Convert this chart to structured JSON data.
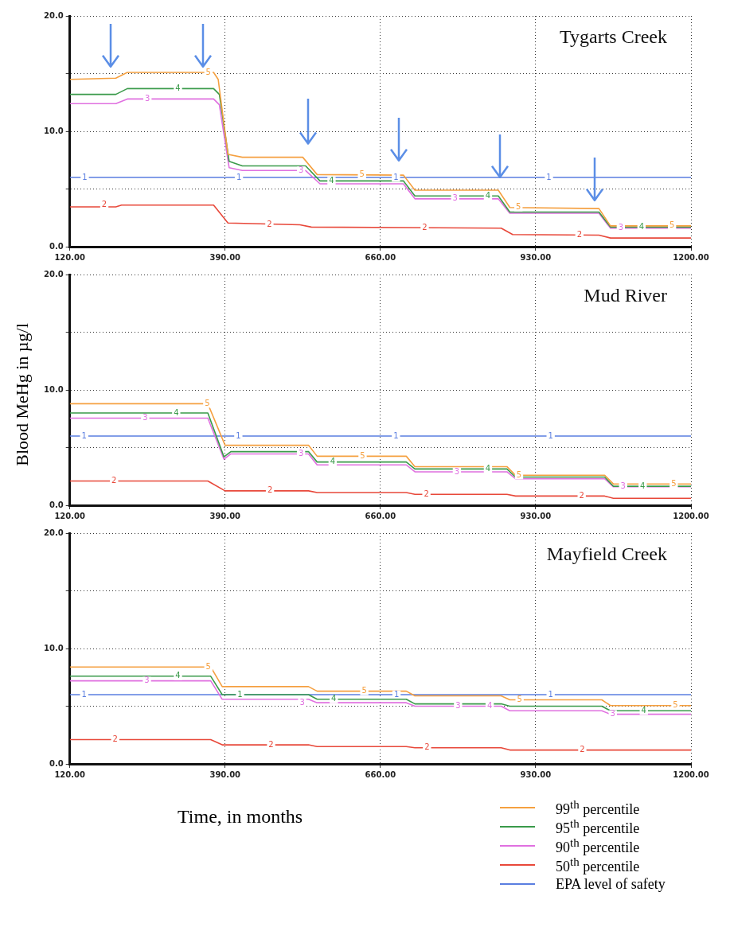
{
  "chart_data": [
    {
      "type": "line",
      "title": "Tygarts Creek",
      "xlim": [
        120,
        1200
      ],
      "ylim": [
        0,
        20
      ],
      "grid": true,
      "marker": "none",
      "xticks": [
        {
          "value": 120,
          "label": "120.00"
        },
        {
          "value": 390,
          "label": "390.00"
        },
        {
          "value": 660,
          "label": "660.00"
        },
        {
          "value": 930,
          "label": "930.00"
        },
        {
          "value": 1200,
          "label": "1200.00"
        }
      ],
      "yticks": [
        {
          "value": 0,
          "label": "0.0"
        },
        {
          "value": 5,
          "label": null
        },
        {
          "value": 10,
          "label": "10.0"
        },
        {
          "value": 15,
          "label": null
        },
        {
          "value": 20,
          "label": "20.0"
        }
      ],
      "series": [
        {
          "color": "#f5a040",
          "x": [
            120,
            200,
            220,
            370,
            378,
            395,
            420,
            525,
            550,
            700,
            720,
            865,
            885,
            1040,
            1060,
            1200
          ],
          "values": [
            14.5,
            14.6,
            15.1,
            15.1,
            14.5,
            8.0,
            7.75,
            7.75,
            6.25,
            6.2,
            4.9,
            4.9,
            3.4,
            3.3,
            1.8,
            1.8
          ]
        },
        {
          "color": "#3a9a4a",
          "x": [
            120,
            200,
            220,
            370,
            380,
            397,
            420,
            530,
            555,
            700,
            720,
            865,
            885,
            1040,
            1060,
            1200
          ],
          "values": [
            13.2,
            13.2,
            13.7,
            13.7,
            13.2,
            7.4,
            7.0,
            7.0,
            5.7,
            5.7,
            4.4,
            4.4,
            3.0,
            3.0,
            1.7,
            1.7
          ]
        },
        {
          "color": "#e070e0",
          "x": [
            120,
            200,
            220,
            370,
            380,
            397,
            420,
            530,
            555,
            700,
            720,
            865,
            885,
            1040,
            1060,
            1200
          ],
          "values": [
            12.4,
            12.4,
            12.8,
            12.8,
            12.3,
            6.85,
            6.6,
            6.6,
            5.45,
            5.45,
            4.15,
            4.15,
            2.9,
            2.9,
            1.6,
            1.6
          ]
        },
        {
          "color": "#e8483a",
          "x": [
            120,
            200,
            210,
            370,
            395,
            520,
            540,
            870,
            890,
            1040,
            1060,
            1200
          ],
          "values": [
            3.45,
            3.45,
            3.6,
            3.6,
            2.05,
            1.9,
            1.7,
            1.6,
            1.05,
            1.0,
            0.75,
            0.75
          ]
        },
        {
          "color": "#5a7ee0",
          "x": [
            120,
            1200
          ],
          "values": [
            6,
            6
          ]
        }
      ],
      "annotations": [
        {
          "text": "1",
          "x": 146,
          "y": 6
        },
        {
          "text": "1",
          "x": 414,
          "y": 6
        },
        {
          "text": "1",
          "x": 687,
          "y": 6
        },
        {
          "text": "1",
          "x": 953,
          "y": 6
        },
        {
          "text": "2",
          "x": 180,
          "y": 3.6
        },
        {
          "text": "2",
          "x": 467,
          "y": 1.9
        },
        {
          "text": "2",
          "x": 737,
          "y": 1.6
        },
        {
          "text": "2",
          "x": 1006,
          "y": 1.0
        },
        {
          "text": "3",
          "x": 255,
          "y": 12.8
        },
        {
          "text": "3",
          "x": 522,
          "y": 6.6
        },
        {
          "text": "3",
          "x": 790,
          "y": 4.15
        },
        {
          "text": "3",
          "x": 1078,
          "y": 1.6
        },
        {
          "text": "4",
          "x": 308,
          "y": 13.7
        },
        {
          "text": "4",
          "x": 575,
          "y": 5.7
        },
        {
          "text": "4",
          "x": 847,
          "y": 4.4
        },
        {
          "text": "4",
          "x": 1114,
          "y": 1.7
        },
        {
          "text": "5",
          "x": 361,
          "y": 15.1
        },
        {
          "text": "5",
          "x": 628,
          "y": 6.25
        },
        {
          "text": "5",
          "x": 900,
          "y": 3.4
        },
        {
          "text": "5",
          "x": 1167,
          "y": 1.8
        }
      ]
    },
    {
      "type": "line",
      "title": "Mud River",
      "ylabel": "Blood MeHg in µg/l",
      "xlim": [
        120,
        1200
      ],
      "ylim": [
        0,
        20
      ],
      "grid": true,
      "marker": "none",
      "xticks": [
        {
          "value": 120,
          "label": "120.00"
        },
        {
          "value": 390,
          "label": "390.00"
        },
        {
          "value": 660,
          "label": "660.00"
        },
        {
          "value": 930,
          "label": "930.00"
        },
        {
          "value": 1200,
          "label": "1200.00"
        }
      ],
      "yticks": [
        {
          "value": 0,
          "label": "0.0"
        },
        {
          "value": 5,
          "label": null
        },
        {
          "value": 10,
          "label": "10.0"
        },
        {
          "value": 15,
          "label": null
        },
        {
          "value": 20,
          "label": "20.0"
        }
      ],
      "series": [
        {
          "color": "#f5a040",
          "x": [
            120,
            360,
            390,
            535,
            550,
            705,
            720,
            880,
            895,
            1050,
            1065,
            1200
          ],
          "values": [
            8.8,
            8.8,
            5.2,
            5.2,
            4.25,
            4.25,
            3.35,
            3.35,
            2.6,
            2.6,
            1.85,
            1.85
          ]
        },
        {
          "color": "#3a9a4a",
          "x": [
            120,
            360,
            388,
            400,
            535,
            550,
            705,
            720,
            880,
            895,
            1050,
            1065,
            1200
          ],
          "values": [
            8.0,
            8.0,
            4.2,
            4.65,
            4.65,
            3.75,
            3.75,
            3.15,
            3.15,
            2.45,
            2.45,
            1.65,
            1.65
          ]
        },
        {
          "color": "#e070e0",
          "x": [
            120,
            360,
            388,
            400,
            535,
            550,
            705,
            720,
            880,
            895,
            1050,
            1065,
            1200
          ],
          "values": [
            7.55,
            7.55,
            4.0,
            4.45,
            4.45,
            3.5,
            3.5,
            2.9,
            2.9,
            2.3,
            2.3,
            1.6,
            1.6
          ]
        },
        {
          "color": "#e8483a",
          "x": [
            120,
            360,
            390,
            535,
            550,
            705,
            720,
            880,
            895,
            1050,
            1065,
            1200
          ],
          "values": [
            2.1,
            2.1,
            1.25,
            1.25,
            1.1,
            1.1,
            0.95,
            0.95,
            0.8,
            0.8,
            0.6,
            0.6
          ]
        },
        {
          "color": "#5a7ee0",
          "x": [
            120,
            1200
          ],
          "values": [
            6,
            6
          ]
        }
      ],
      "annotations": [
        {
          "text": "1",
          "x": 145,
          "y": 6
        },
        {
          "text": "1",
          "x": 413,
          "y": 6
        },
        {
          "text": "1",
          "x": 687,
          "y": 6
        },
        {
          "text": "1",
          "x": 956,
          "y": 6
        },
        {
          "text": "2",
          "x": 197,
          "y": 2.1
        },
        {
          "text": "2",
          "x": 468,
          "y": 1.25
        },
        {
          "text": "2",
          "x": 740,
          "y": 0.95
        },
        {
          "text": "2",
          "x": 1010,
          "y": 0.8
        },
        {
          "text": "3",
          "x": 251,
          "y": 7.55
        },
        {
          "text": "3",
          "x": 522,
          "y": 4.45
        },
        {
          "text": "3",
          "x": 793,
          "y": 2.9
        },
        {
          "text": "3",
          "x": 1082,
          "y": 1.6
        },
        {
          "text": "4",
          "x": 305,
          "y": 8.0
        },
        {
          "text": "4",
          "x": 577,
          "y": 3.75
        },
        {
          "text": "4",
          "x": 847,
          "y": 3.15
        },
        {
          "text": "4",
          "x": 1116,
          "y": 1.65
        },
        {
          "text": "5",
          "x": 359,
          "y": 8.8
        },
        {
          "text": "5",
          "x": 629,
          "y": 4.25
        },
        {
          "text": "5",
          "x": 901,
          "y": 2.6
        },
        {
          "text": "5",
          "x": 1170,
          "y": 1.85
        }
      ]
    },
    {
      "type": "line",
      "title": "Mayfield Creek",
      "xlabel": "Time, in months",
      "xlim": [
        120,
        1200
      ],
      "ylim": [
        0,
        20
      ],
      "grid": true,
      "marker": "none",
      "legend": "bottom right",
      "xticks": [
        {
          "value": 120,
          "label": "120.00"
        },
        {
          "value": 390,
          "label": "390.00"
        },
        {
          "value": 660,
          "label": "660.00"
        },
        {
          "value": 930,
          "label": "930.00"
        },
        {
          "value": 1200,
          "label": "1200.00"
        }
      ],
      "yticks": [
        {
          "value": 0,
          "label": "0.0"
        },
        {
          "value": 5,
          "label": null
        },
        {
          "value": 10,
          "label": "10.0"
        },
        {
          "value": 15,
          "label": null
        },
        {
          "value": 20,
          "label": "20.0"
        }
      ],
      "series": [
        {
          "name": "99$^{th}$ percentile",
          "color": "#f5a040",
          "x": [
            120,
            365,
            385,
            535,
            550,
            705,
            720,
            870,
            885,
            1045,
            1060,
            1200
          ],
          "values": [
            8.4,
            8.4,
            6.7,
            6.7,
            6.3,
            6.3,
            5.9,
            5.9,
            5.55,
            5.55,
            5.05,
            5.05
          ]
        },
        {
          "name": "95$^{th}$ percentile",
          "color": "#3a9a4a",
          "x": [
            120,
            365,
            385,
            535,
            550,
            705,
            720,
            870,
            885,
            1045,
            1060,
            1200
          ],
          "values": [
            7.6,
            7.6,
            6.0,
            6.0,
            5.6,
            5.6,
            5.2,
            5.2,
            5.0,
            5.0,
            4.6,
            4.6
          ]
        },
        {
          "name": "90$^{th}$ percentile",
          "color": "#e070e0",
          "x": [
            120,
            365,
            385,
            535,
            550,
            705,
            720,
            870,
            885,
            1045,
            1060,
            1200
          ],
          "values": [
            7.2,
            7.2,
            5.6,
            5.6,
            5.3,
            5.3,
            5.0,
            5.0,
            4.6,
            4.6,
            4.3,
            4.3
          ]
        },
        {
          "name": "50$^{th}$ percentile",
          "color": "#e8483a",
          "x": [
            120,
            365,
            385,
            535,
            550,
            705,
            720,
            870,
            885,
            1045,
            1060,
            1200
          ],
          "values": [
            2.1,
            2.1,
            1.65,
            1.65,
            1.5,
            1.5,
            1.4,
            1.4,
            1.2,
            1.2,
            1.2,
            1.2
          ]
        },
        {
          "name": "EPA level of safety",
          "color": "#5a7ee0",
          "x": [
            120,
            1200
          ],
          "values": [
            6,
            6
          ]
        }
      ],
      "annotations": [
        {
          "text": "1",
          "x": 145,
          "y": 6
        },
        {
          "text": "1",
          "x": 416,
          "y": 6
        },
        {
          "text": "1",
          "x": 688,
          "y": 6
        },
        {
          "text": "1",
          "x": 956,
          "y": 6
        },
        {
          "text": "2",
          "x": 199,
          "y": 2.1
        },
        {
          "text": "2",
          "x": 470,
          "y": 1.65
        },
        {
          "text": "2",
          "x": 741,
          "y": 1.4
        },
        {
          "text": "2",
          "x": 1011,
          "y": 1.2
        },
        {
          "text": "3",
          "x": 254,
          "y": 7.2
        },
        {
          "text": "3",
          "x": 524,
          "y": 5.3
        },
        {
          "text": "3",
          "x": 795,
          "y": 5.0
        },
        {
          "text": "3",
          "x": 1064,
          "y": 4.3
        },
        {
          "text": "4",
          "x": 308,
          "y": 7.6
        },
        {
          "text": "4",
          "x": 579,
          "y": 5.6
        },
        {
          "text": "4",
          "x": 850,
          "y": 5.0
        },
        {
          "text": "4",
          "x": 1118,
          "y": 4.6
        },
        {
          "text": "5",
          "x": 361,
          "y": 8.4
        },
        {
          "text": "5",
          "x": 632,
          "y": 6.3
        },
        {
          "text": "5",
          "x": 902,
          "y": 5.55
        },
        {
          "text": "5",
          "x": 1173,
          "y": 5.05
        }
      ]
    }
  ]
}
